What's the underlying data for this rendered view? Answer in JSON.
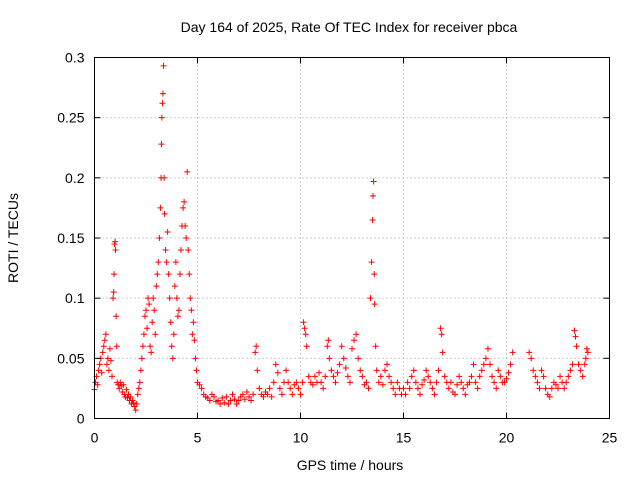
{
  "chart_data": {
    "type": "scatter",
    "title": "Day 164 of 2025, Rate Of TEC Index for receiver pbca",
    "xlabel": "GPS time / hours",
    "ylabel": "ROTI / TECUs",
    "xlim": [
      0,
      25
    ],
    "ylim": [
      0,
      0.3
    ],
    "xticks": [
      0,
      5,
      10,
      15,
      20,
      25
    ],
    "xtick_labels": [
      "0",
      "5",
      "10",
      "15",
      "20",
      "25"
    ],
    "yticks": [
      0,
      0.05,
      0.1,
      0.15,
      0.2,
      0.25,
      0.3
    ],
    "ytick_labels": [
      "0",
      "0.05",
      "0.1",
      "0.15",
      "0.2",
      "0.25",
      "0.3"
    ],
    "grid": true,
    "marker": "+",
    "color": "#ff0000",
    "series": [
      {
        "name": "ROTI",
        "points": [
          [
            0.0,
            0.024
          ],
          [
            0.05,
            0.03
          ],
          [
            0.1,
            0.035
          ],
          [
            0.15,
            0.028
          ],
          [
            0.2,
            0.04
          ],
          [
            0.25,
            0.045
          ],
          [
            0.3,
            0.05
          ],
          [
            0.35,
            0.038
          ],
          [
            0.4,
            0.055
          ],
          [
            0.45,
            0.06
          ],
          [
            0.5,
            0.065
          ],
          [
            0.55,
            0.07
          ],
          [
            0.6,
            0.045
          ],
          [
            0.65,
            0.05
          ],
          [
            0.7,
            0.04
          ],
          [
            0.75,
            0.058
          ],
          [
            0.8,
            0.048
          ],
          [
            0.85,
            0.035
          ],
          [
            0.9,
            0.1
          ],
          [
            0.93,
            0.105
          ],
          [
            0.95,
            0.12
          ],
          [
            0.97,
            0.145
          ],
          [
            1.0,
            0.147
          ],
          [
            1.02,
            0.14
          ],
          [
            1.05,
            0.085
          ],
          [
            1.08,
            0.06
          ],
          [
            1.1,
            0.03
          ],
          [
            1.15,
            0.028
          ],
          [
            1.2,
            0.025
          ],
          [
            1.25,
            0.03
          ],
          [
            1.3,
            0.027
          ],
          [
            1.35,
            0.022
          ],
          [
            1.4,
            0.028
          ],
          [
            1.45,
            0.02
          ],
          [
            1.5,
            0.018
          ],
          [
            1.55,
            0.024
          ],
          [
            1.6,
            0.017
          ],
          [
            1.65,
            0.02
          ],
          [
            1.7,
            0.015
          ],
          [
            1.75,
            0.018
          ],
          [
            1.8,
            0.012
          ],
          [
            1.85,
            0.015
          ],
          [
            1.9,
            0.013
          ],
          [
            1.95,
            0.01
          ],
          [
            2.0,
            0.007
          ],
          [
            2.05,
            0.012
          ],
          [
            2.1,
            0.02
          ],
          [
            2.15,
            0.025
          ],
          [
            2.2,
            0.03
          ],
          [
            2.25,
            0.04
          ],
          [
            2.3,
            0.05
          ],
          [
            2.35,
            0.06
          ],
          [
            2.4,
            0.07
          ],
          [
            2.45,
            0.085
          ],
          [
            2.5,
            0.09
          ],
          [
            2.55,
            0.075
          ],
          [
            2.6,
            0.1
          ],
          [
            2.65,
            0.095
          ],
          [
            2.7,
            0.06
          ],
          [
            2.75,
            0.055
          ],
          [
            2.8,
            0.08
          ],
          [
            2.85,
            0.1
          ],
          [
            2.9,
            0.09
          ],
          [
            2.95,
            0.07
          ],
          [
            3.0,
            0.11
          ],
          [
            3.05,
            0.12
          ],
          [
            3.1,
            0.13
          ],
          [
            3.15,
            0.15
          ],
          [
            3.2,
            0.175
          ],
          [
            3.23,
            0.2
          ],
          [
            3.25,
            0.228
          ],
          [
            3.27,
            0.25
          ],
          [
            3.3,
            0.262
          ],
          [
            3.32,
            0.27
          ],
          [
            3.35,
            0.293
          ],
          [
            3.38,
            0.2
          ],
          [
            3.4,
            0.17
          ],
          [
            3.45,
            0.14
          ],
          [
            3.5,
            0.13
          ],
          [
            3.55,
            0.155
          ],
          [
            3.6,
            0.12
          ],
          [
            3.65,
            0.1
          ],
          [
            3.7,
            0.08
          ],
          [
            3.75,
            0.06
          ],
          [
            3.8,
            0.05
          ],
          [
            3.85,
            0.07
          ],
          [
            3.9,
            0.11
          ],
          [
            3.95,
            0.13
          ],
          [
            4.0,
            0.1
          ],
          [
            4.05,
            0.085
          ],
          [
            4.1,
            0.09
          ],
          [
            4.15,
            0.12
          ],
          [
            4.2,
            0.14
          ],
          [
            4.25,
            0.16
          ],
          [
            4.3,
            0.175
          ],
          [
            4.35,
            0.18
          ],
          [
            4.4,
            0.16
          ],
          [
            4.45,
            0.15
          ],
          [
            4.5,
            0.205
          ],
          [
            4.55,
            0.14
          ],
          [
            4.6,
            0.12
          ],
          [
            4.65,
            0.1
          ],
          [
            4.7,
            0.09
          ],
          [
            4.75,
            0.07
          ],
          [
            4.8,
            0.08
          ],
          [
            4.85,
            0.065
          ],
          [
            4.9,
            0.05
          ],
          [
            4.95,
            0.04
          ],
          [
            5.0,
            0.03
          ],
          [
            5.1,
            0.028
          ],
          [
            5.2,
            0.025
          ],
          [
            5.3,
            0.02
          ],
          [
            5.4,
            0.018
          ],
          [
            5.5,
            0.017
          ],
          [
            5.6,
            0.015
          ],
          [
            5.7,
            0.02
          ],
          [
            5.8,
            0.018
          ],
          [
            5.9,
            0.014
          ],
          [
            6.0,
            0.015
          ],
          [
            6.1,
            0.012
          ],
          [
            6.2,
            0.017
          ],
          [
            6.3,
            0.013
          ],
          [
            6.4,
            0.018
          ],
          [
            6.5,
            0.012
          ],
          [
            6.6,
            0.015
          ],
          [
            6.7,
            0.02
          ],
          [
            6.8,
            0.016
          ],
          [
            6.9,
            0.012
          ],
          [
            7.0,
            0.015
          ],
          [
            7.1,
            0.018
          ],
          [
            7.2,
            0.02
          ],
          [
            7.3,
            0.016
          ],
          [
            7.4,
            0.022
          ],
          [
            7.5,
            0.018
          ],
          [
            7.6,
            0.015
          ],
          [
            7.7,
            0.02
          ],
          [
            7.8,
            0.055
          ],
          [
            7.85,
            0.06
          ],
          [
            7.9,
            0.04
          ],
          [
            8.0,
            0.025
          ],
          [
            8.1,
            0.02
          ],
          [
            8.2,
            0.018
          ],
          [
            8.3,
            0.022
          ],
          [
            8.4,
            0.02
          ],
          [
            8.5,
            0.025
          ],
          [
            8.6,
            0.018
          ],
          [
            8.7,
            0.03
          ],
          [
            8.8,
            0.045
          ],
          [
            8.9,
            0.038
          ],
          [
            9.0,
            0.025
          ],
          [
            9.1,
            0.02
          ],
          [
            9.2,
            0.03
          ],
          [
            9.3,
            0.04
          ],
          [
            9.4,
            0.03
          ],
          [
            9.5,
            0.025
          ],
          [
            9.6,
            0.02
          ],
          [
            9.7,
            0.028
          ],
          [
            9.8,
            0.03
          ],
          [
            9.9,
            0.025
          ],
          [
            10.0,
            0.02
          ],
          [
            10.1,
            0.03
          ],
          [
            10.15,
            0.08
          ],
          [
            10.2,
            0.075
          ],
          [
            10.25,
            0.07
          ],
          [
            10.3,
            0.06
          ],
          [
            10.4,
            0.035
          ],
          [
            10.5,
            0.03
          ],
          [
            10.6,
            0.028
          ],
          [
            10.7,
            0.035
          ],
          [
            10.8,
            0.03
          ],
          [
            10.9,
            0.038
          ],
          [
            11.0,
            0.03
          ],
          [
            11.1,
            0.025
          ],
          [
            11.2,
            0.035
          ],
          [
            11.3,
            0.06
          ],
          [
            11.35,
            0.065
          ],
          [
            11.4,
            0.05
          ],
          [
            11.5,
            0.04
          ],
          [
            11.6,
            0.035
          ],
          [
            11.7,
            0.03
          ],
          [
            11.8,
            0.038
          ],
          [
            11.9,
            0.045
          ],
          [
            12.0,
            0.06
          ],
          [
            12.1,
            0.05
          ],
          [
            12.2,
            0.042
          ],
          [
            12.3,
            0.035
          ],
          [
            12.4,
            0.03
          ],
          [
            12.5,
            0.058
          ],
          [
            12.6,
            0.065
          ],
          [
            12.7,
            0.07
          ],
          [
            12.8,
            0.05
          ],
          [
            12.9,
            0.04
          ],
          [
            13.0,
            0.035
          ],
          [
            13.1,
            0.028
          ],
          [
            13.2,
            0.03
          ],
          [
            13.3,
            0.025
          ],
          [
            13.4,
            0.1
          ],
          [
            13.45,
            0.13
          ],
          [
            13.5,
            0.165
          ],
          [
            13.52,
            0.185
          ],
          [
            13.55,
            0.197
          ],
          [
            13.58,
            0.12
          ],
          [
            13.6,
            0.095
          ],
          [
            13.65,
            0.06
          ],
          [
            13.7,
            0.04
          ],
          [
            13.8,
            0.03
          ],
          [
            13.9,
            0.035
          ],
          [
            14.0,
            0.028
          ],
          [
            14.1,
            0.04
          ],
          [
            14.2,
            0.045
          ],
          [
            14.3,
            0.035
          ],
          [
            14.4,
            0.03
          ],
          [
            14.5,
            0.025
          ],
          [
            14.6,
            0.02
          ],
          [
            14.7,
            0.03
          ],
          [
            14.8,
            0.025
          ],
          [
            14.9,
            0.02
          ],
          [
            15.0,
            0.025
          ],
          [
            15.1,
            0.02
          ],
          [
            15.2,
            0.03
          ],
          [
            15.3,
            0.025
          ],
          [
            15.4,
            0.035
          ],
          [
            15.5,
            0.04
          ],
          [
            15.6,
            0.03
          ],
          [
            15.7,
            0.025
          ],
          [
            15.8,
            0.02
          ],
          [
            15.9,
            0.028
          ],
          [
            16.0,
            0.032
          ],
          [
            16.1,
            0.04
          ],
          [
            16.2,
            0.035
          ],
          [
            16.3,
            0.03
          ],
          [
            16.4,
            0.025
          ],
          [
            16.5,
            0.02
          ],
          [
            16.6,
            0.03
          ],
          [
            16.7,
            0.04
          ],
          [
            16.8,
            0.075
          ],
          [
            16.85,
            0.07
          ],
          [
            16.9,
            0.055
          ],
          [
            17.0,
            0.035
          ],
          [
            17.1,
            0.03
          ],
          [
            17.2,
            0.025
          ],
          [
            17.3,
            0.03
          ],
          [
            17.4,
            0.022
          ],
          [
            17.5,
            0.02
          ],
          [
            17.6,
            0.028
          ],
          [
            17.7,
            0.035
          ],
          [
            17.8,
            0.03
          ],
          [
            17.9,
            0.025
          ],
          [
            18.0,
            0.02
          ],
          [
            18.1,
            0.028
          ],
          [
            18.2,
            0.03
          ],
          [
            18.3,
            0.035
          ],
          [
            18.4,
            0.045
          ],
          [
            18.5,
            0.03
          ],
          [
            18.6,
            0.025
          ],
          [
            18.7,
            0.035
          ],
          [
            18.8,
            0.04
          ],
          [
            18.9,
            0.045
          ],
          [
            19.0,
            0.05
          ],
          [
            19.1,
            0.058
          ],
          [
            19.2,
            0.045
          ],
          [
            19.3,
            0.035
          ],
          [
            19.4,
            0.03
          ],
          [
            19.5,
            0.025
          ],
          [
            19.6,
            0.04
          ],
          [
            19.7,
            0.035
          ],
          [
            19.8,
            0.03
          ],
          [
            19.9,
            0.03
          ],
          [
            20.0,
            0.033
          ],
          [
            20.1,
            0.038
          ],
          [
            20.2,
            0.045
          ],
          [
            20.3,
            0.055
          ],
          [
            21.1,
            0.055
          ],
          [
            21.2,
            0.05
          ],
          [
            21.3,
            0.04
          ],
          [
            21.4,
            0.035
          ],
          [
            21.5,
            0.03
          ],
          [
            21.6,
            0.025
          ],
          [
            21.7,
            0.04
          ],
          [
            21.8,
            0.035
          ],
          [
            21.9,
            0.025
          ],
          [
            22.0,
            0.02
          ],
          [
            22.1,
            0.018
          ],
          [
            22.2,
            0.025
          ],
          [
            22.3,
            0.03
          ],
          [
            22.4,
            0.028
          ],
          [
            22.5,
            0.025
          ],
          [
            22.6,
            0.035
          ],
          [
            22.7,
            0.03
          ],
          [
            22.8,
            0.025
          ],
          [
            22.9,
            0.03
          ],
          [
            23.0,
            0.035
          ],
          [
            23.1,
            0.04
          ],
          [
            23.2,
            0.045
          ],
          [
            23.3,
            0.073
          ],
          [
            23.35,
            0.068
          ],
          [
            23.4,
            0.06
          ],
          [
            23.5,
            0.045
          ],
          [
            23.6,
            0.04
          ],
          [
            23.7,
            0.035
          ],
          [
            23.8,
            0.045
          ],
          [
            23.85,
            0.05
          ],
          [
            23.9,
            0.058
          ],
          [
            23.95,
            0.055
          ]
        ]
      }
    ]
  }
}
